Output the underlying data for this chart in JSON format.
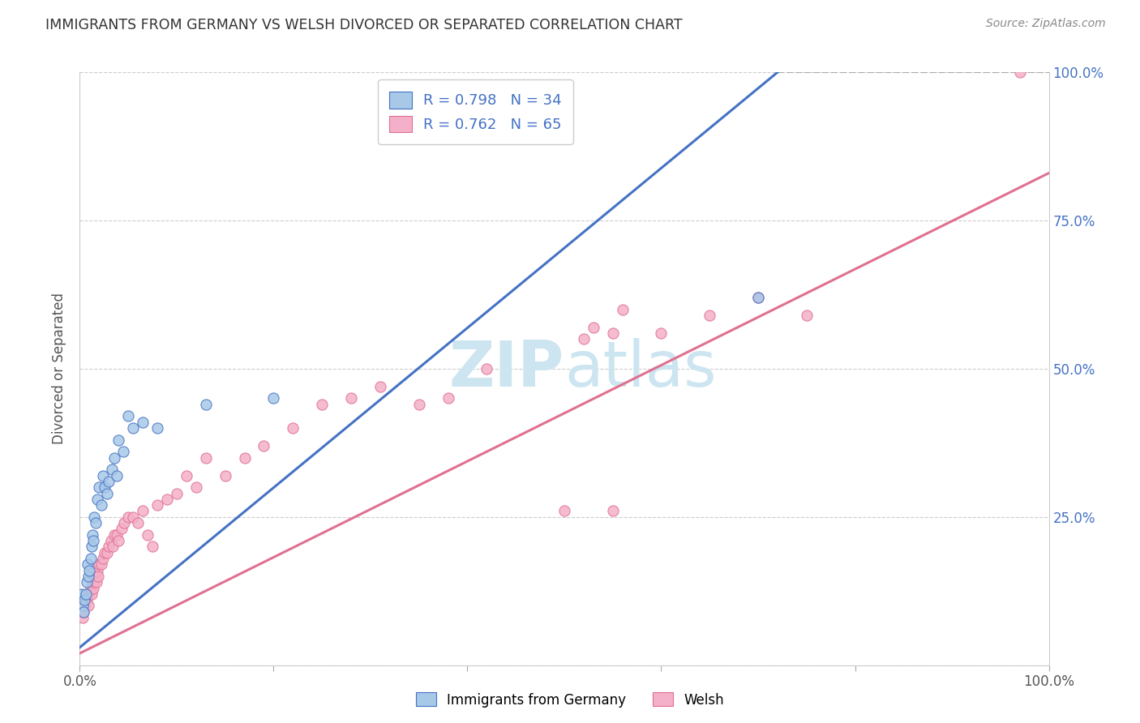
{
  "title": "IMMIGRANTS FROM GERMANY VS WELSH DIVORCED OR SEPARATED CORRELATION CHART",
  "source": "Source: ZipAtlas.com",
  "ylabel": "Divorced or Separated",
  "xmin": 0.0,
  "xmax": 1.0,
  "ymin": 0.0,
  "ymax": 1.0,
  "ytick_values": [
    0.0,
    0.25,
    0.5,
    0.75,
    1.0
  ],
  "xtick_values": [
    0.0,
    0.2,
    0.4,
    0.6,
    0.8,
    1.0
  ],
  "legend_label1": "R = 0.798   N = 34",
  "legend_label2": "R = 0.762   N = 65",
  "legend_color1": "#a8c8e8",
  "legend_color2": "#f4b0c8",
  "scatter_color1": "#a8c8e8",
  "scatter_color2": "#f4b0c8",
  "line_color1": "#4472c4",
  "line_color2": "#e07090",
  "trendline1_x": [
    0.0,
    0.72
  ],
  "trendline1_y": [
    0.03,
    1.0
  ],
  "trendline2_x": [
    0.0,
    1.0
  ],
  "trendline2_y": [
    0.02,
    0.83
  ],
  "dashed_line_x": [
    0.72,
    1.0
  ],
  "dashed_line_y": [
    1.0,
    1.0
  ],
  "blue_points_x": [
    0.002,
    0.003,
    0.004,
    0.005,
    0.006,
    0.007,
    0.008,
    0.009,
    0.01,
    0.011,
    0.012,
    0.013,
    0.014,
    0.015,
    0.016,
    0.018,
    0.02,
    0.022,
    0.024,
    0.026,
    0.028,
    0.03,
    0.033,
    0.036,
    0.038,
    0.04,
    0.045,
    0.05,
    0.055,
    0.065,
    0.08,
    0.13,
    0.2,
    0.7
  ],
  "blue_points_y": [
    0.12,
    0.1,
    0.09,
    0.11,
    0.12,
    0.14,
    0.17,
    0.15,
    0.16,
    0.18,
    0.2,
    0.22,
    0.21,
    0.25,
    0.24,
    0.28,
    0.3,
    0.27,
    0.32,
    0.3,
    0.29,
    0.31,
    0.33,
    0.35,
    0.32,
    0.38,
    0.36,
    0.42,
    0.4,
    0.41,
    0.4,
    0.44,
    0.45,
    0.62
  ],
  "pink_points_x": [
    0.001,
    0.002,
    0.003,
    0.004,
    0.005,
    0.006,
    0.007,
    0.008,
    0.009,
    0.01,
    0.011,
    0.012,
    0.013,
    0.014,
    0.015,
    0.016,
    0.017,
    0.018,
    0.019,
    0.02,
    0.022,
    0.024,
    0.026,
    0.028,
    0.03,
    0.032,
    0.034,
    0.036,
    0.038,
    0.04,
    0.043,
    0.046,
    0.05,
    0.055,
    0.06,
    0.065,
    0.07,
    0.075,
    0.08,
    0.09,
    0.1,
    0.11,
    0.12,
    0.13,
    0.15,
    0.17,
    0.19,
    0.22,
    0.25,
    0.28,
    0.31,
    0.35,
    0.38,
    0.42,
    0.5,
    0.55,
    0.6,
    0.65,
    0.7,
    0.75,
    0.52,
    0.53,
    0.55,
    0.56,
    0.97
  ],
  "pink_points_y": [
    0.1,
    0.09,
    0.08,
    0.09,
    0.1,
    0.11,
    0.11,
    0.12,
    0.1,
    0.12,
    0.13,
    0.12,
    0.14,
    0.13,
    0.14,
    0.15,
    0.14,
    0.16,
    0.15,
    0.17,
    0.17,
    0.18,
    0.19,
    0.19,
    0.2,
    0.21,
    0.2,
    0.22,
    0.22,
    0.21,
    0.23,
    0.24,
    0.25,
    0.25,
    0.24,
    0.26,
    0.22,
    0.2,
    0.27,
    0.28,
    0.29,
    0.32,
    0.3,
    0.35,
    0.32,
    0.35,
    0.37,
    0.4,
    0.44,
    0.45,
    0.47,
    0.44,
    0.45,
    0.5,
    0.26,
    0.26,
    0.56,
    0.59,
    0.62,
    0.59,
    0.55,
    0.57,
    0.56,
    0.6,
    1.0
  ],
  "watermark_color": "#cce5f0",
  "bg_color": "#ffffff",
  "grid_color": "#cccccc",
  "title_color": "#333333",
  "right_yaxis_color": "#4472c4"
}
